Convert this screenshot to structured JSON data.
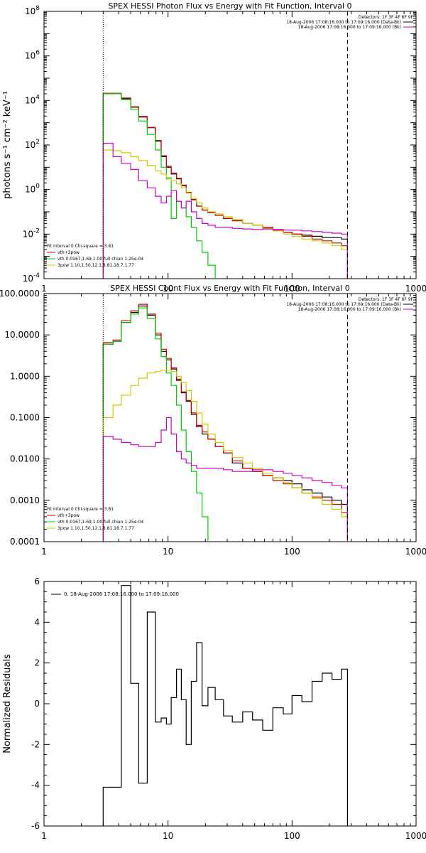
{
  "chart_data": [
    {
      "type": "line",
      "title": "SPEX HESSI Photon Flux vs Energy with Fit Function, Interval 0",
      "ylabel": "photons s⁻¹ cm⁻² keV⁻¹",
      "xscale": "log",
      "yscale": "log",
      "xlim": [
        1,
        1000
      ],
      "ylim": [
        0.0001,
        100000000
      ],
      "x_ticks": [
        1,
        10,
        100,
        1000
      ],
      "x_tick_labels": [
        "1",
        "10",
        "100",
        "1000"
      ],
      "y_ticks": [
        0.0001,
        0.01,
        1,
        100,
        10000,
        1000000,
        100000000
      ],
      "y_tick_labels": [
        {
          "base": "10",
          "exp": "-4"
        },
        {
          "base": "10",
          "exp": "-2"
        },
        {
          "base": "10",
          "exp": "0"
        },
        {
          "base": "10",
          "exp": "2"
        },
        {
          "base": "10",
          "exp": "4"
        },
        {
          "base": "10",
          "exp": "6"
        },
        {
          "base": "10",
          "exp": "8"
        }
      ],
      "vlines": [
        {
          "x": 3,
          "style": "dotted",
          "color": "#000000"
        },
        {
          "x": 280,
          "style": "dashed",
          "color": "#000000"
        }
      ],
      "legend_topright": [
        {
          "text": "Detectors: 1F 3F 4F 6F 9F",
          "color": "#000000",
          "swatch": false
        },
        {
          "text": "18-Aug-2006 17:08:16.000 to 17:09:16.000 (Data-Bk)",
          "color": "#000000",
          "swatch": true
        },
        {
          "text": "18-Aug-2006 17:08:16.000 to 17:09:16.000 (Bk)",
          "color": "#cc00cc",
          "swatch": true
        }
      ],
      "legend_bottomleft": [
        {
          "text": "Fit Interval 0   Chi-square = 3.81",
          "color": "#000000",
          "swatch": false
        },
        {
          "text": "vth+3pow",
          "color": "#cc0000",
          "swatch": true
        },
        {
          "text": "vth 0.0167,1.69,1.00  full chian 1.25e-04",
          "color": "#00cc00",
          "swatch": true
        },
        {
          "text": "3pow 1.10,1.50,12.1,8.81,18.7,1.77",
          "color": "#cccc00",
          "swatch": true
        }
      ],
      "series": [
        {
          "color": "#000000",
          "x": [
            3,
            3.6,
            4.2,
            5,
            5.8,
            6.8,
            7.9,
            8.8,
            9.7,
            10.6,
            11.7,
            12.8,
            14,
            15.4,
            17,
            18.8,
            21,
            24,
            28,
            33,
            40,
            48,
            58,
            70,
            85,
            100,
            120,
            145,
            175,
            210,
            250,
            280
          ],
          "y": [
            20000,
            20000,
            12000,
            5000,
            1800,
            600,
            150,
            30,
            10,
            5,
            3,
            1.5,
            0.7,
            0.35,
            0.18,
            0.12,
            0.09,
            0.07,
            0.05,
            0.04,
            0.03,
            0.025,
            0.02,
            0.015,
            0.012,
            0.01,
            0.009,
            0.008,
            0.007,
            0.007,
            0.006,
            0.006
          ]
        },
        {
          "color": "#cc0000",
          "x": [
            3,
            3.6,
            4.2,
            5,
            5.8,
            6.8,
            7.9,
            8.8,
            9.7,
            10.6,
            11.7,
            12.8,
            14,
            15.4,
            17,
            18.8,
            21,
            24,
            28,
            33,
            40,
            48,
            58,
            70,
            85,
            100,
            120,
            145,
            175,
            210,
            250,
            280
          ],
          "y": [
            21000,
            21000,
            13000,
            5200,
            1900,
            620,
            160,
            33,
            11,
            5.5,
            3.2,
            1.6,
            0.75,
            0.36,
            0.18,
            0.12,
            0.09,
            0.07,
            0.05,
            0.04,
            0.03,
            0.025,
            0.02,
            0.015,
            0.012,
            0.01,
            0.008,
            0.006,
            0.005,
            0.004,
            0.003,
            0.002
          ]
        },
        {
          "color": "#00cc00",
          "x": [
            3,
            3.6,
            4.2,
            5,
            5.8,
            6.8,
            7.9,
            8.8,
            9.7,
            10.6,
            11.7,
            12.8,
            14,
            15.4,
            17,
            18.8,
            21,
            24
          ],
          "y": [
            20000,
            20000,
            11000,
            4000,
            1200,
            300,
            60,
            10,
            3,
            0.05,
            0.3,
            0.15,
            0.06,
            0.02,
            0.005,
            0.0015,
            0.0004,
            0.0001
          ]
        },
        {
          "color": "#cccc00",
          "x": [
            3,
            3.6,
            4.2,
            5,
            5.8,
            6.8,
            7.9,
            8.8,
            9.7,
            10.6,
            11.7,
            12.8,
            14,
            15.4,
            17,
            18.8,
            21,
            24,
            28,
            33,
            40,
            48,
            58,
            70,
            85,
            100,
            120,
            145,
            175,
            210,
            250,
            280
          ],
          "y": [
            60,
            55,
            45,
            30,
            20,
            12,
            7,
            5,
            3.5,
            2.5,
            1.8,
            1.2,
            0.7,
            0.4,
            0.25,
            0.15,
            0.1,
            0.08,
            0.06,
            0.045,
            0.03,
            0.025,
            0.018,
            0.014,
            0.01,
            0.008,
            0.006,
            0.005,
            0.004,
            0.003,
            0.002,
            0.001
          ]
        },
        {
          "color": "#cc00cc",
          "x": [
            3,
            3.6,
            4.2,
            5,
            5.8,
            6.8,
            7.9,
            8.8,
            9.7,
            10.6,
            11.7,
            12.8,
            14,
            15.4,
            17,
            18.8,
            21,
            24,
            28,
            33,
            40,
            48,
            58,
            70,
            85,
            100,
            120,
            145,
            175,
            210,
            250,
            280
          ],
          "y": [
            120,
            30,
            15,
            8,
            2.5,
            1.2,
            0.5,
            0.25,
            0.5,
            0.9,
            0.3,
            0.15,
            0.3,
            0.1,
            0.05,
            0.03,
            0.025,
            0.02,
            0.02,
            0.018,
            0.017,
            0.016,
            0.017,
            0.016,
            0.015,
            0.015,
            0.014,
            0.013,
            0.012,
            0.011,
            0.01,
            0.009
          ]
        }
      ]
    },
    {
      "type": "line",
      "title": "SPEX HESSI Count Flux vs Energy with Fit Function, Interval 0",
      "ylabel": "",
      "xscale": "log",
      "yscale": "log",
      "xlim": [
        1,
        1000
      ],
      "ylim": [
        0.0001,
        100
      ],
      "x_ticks": [
        1,
        10,
        100,
        1000
      ],
      "x_tick_labels": [
        "1",
        "10",
        "100",
        "1000"
      ],
      "y_ticks": [
        0.0001,
        0.001,
        0.01,
        0.1,
        1,
        10,
        100
      ],
      "y_tick_labels": [
        {
          "base": "0.0001",
          "exp": ""
        },
        {
          "base": "0.0010",
          "exp": ""
        },
        {
          "base": "0.0100",
          "exp": ""
        },
        {
          "base": "0.1000",
          "exp": ""
        },
        {
          "base": "1.0000",
          "exp": ""
        },
        {
          "base": "10.0000",
          "exp": ""
        },
        {
          "base": "100.0000",
          "exp": ""
        }
      ],
      "vlines": [
        {
          "x": 3,
          "style": "dotted",
          "color": "#000000"
        },
        {
          "x": 280,
          "style": "dashed",
          "color": "#000000"
        }
      ],
      "legend_topright": [
        {
          "text": "Detectors: 1F 3F 4F 6F 9F",
          "color": "#000000",
          "swatch": false
        },
        {
          "text": "18-Aug-2006 17:08:16.000 to 17:09:16.000 (Data-Bk)",
          "color": "#000000",
          "swatch": true
        },
        {
          "text": "18-Aug-2006 17:08:16.000 to 17:09:16.000 (Bk)",
          "color": "#cc00cc",
          "swatch": true
        }
      ],
      "legend_bottomleft": [
        {
          "text": "Fit Interval 0   Chi-square = 3.81",
          "color": "#000000",
          "swatch": false
        },
        {
          "text": "vth+3pow",
          "color": "#cc0000",
          "swatch": true
        },
        {
          "text": "vth 0.0167,1.69,1.00  full chian 1.25e-04",
          "color": "#00cc00",
          "swatch": true
        },
        {
          "text": "3pow 1.10,1.50,12.1,8.81,18.7,1.77",
          "color": "#cccc00",
          "swatch": true
        }
      ],
      "series": [
        {
          "color": "#000000",
          "x": [
            3,
            3.6,
            4.2,
            5,
            5.8,
            6.8,
            7.9,
            8.8,
            9.7,
            10.6,
            11.7,
            12.8,
            14,
            15.4,
            17,
            18.8,
            21,
            24,
            28,
            33,
            40,
            48,
            58,
            70,
            85,
            100,
            120,
            145,
            175,
            210,
            250,
            280
          ],
          "y": [
            6,
            7,
            20,
            35,
            50,
            30,
            10,
            4,
            2.5,
            1.5,
            0.8,
            0.4,
            0.25,
            0.12,
            0.06,
            0.04,
            0.03,
            0.02,
            0.014,
            0.008,
            0.006,
            0.005,
            0.004,
            0.0035,
            0.003,
            0.0025,
            0.0018,
            0.0015,
            0.0012,
            0.001,
            0.0008,
            0.0008
          ]
        },
        {
          "color": "#cc0000",
          "x": [
            3,
            3.6,
            4.2,
            5,
            5.8,
            6.8,
            7.9,
            8.8,
            9.7,
            10.6,
            11.7,
            12.8,
            14,
            15.4,
            17,
            18.8,
            21,
            24,
            28,
            33,
            40,
            48,
            58,
            70,
            85,
            100,
            120,
            145,
            175,
            210,
            250,
            280
          ],
          "y": [
            6.5,
            7.5,
            22,
            38,
            55,
            32,
            11,
            4.5,
            2.7,
            1.6,
            0.85,
            0.42,
            0.26,
            0.13,
            0.065,
            0.045,
            0.03,
            0.02,
            0.014,
            0.009,
            0.006,
            0.005,
            0.004,
            0.003,
            0.0025,
            0.002,
            0.0015,
            0.0012,
            0.001,
            0.0008,
            0.0005,
            0.0005
          ]
        },
        {
          "color": "#00cc00",
          "x": [
            3,
            3.6,
            4.2,
            5,
            5.8,
            6.8,
            7.9,
            8.8,
            9.7,
            10.6,
            11.7,
            12.8,
            14,
            15.4,
            17,
            18.8,
            21
          ],
          "y": [
            6,
            7,
            20,
            32,
            45,
            25,
            8,
            3,
            1.2,
            0.6,
            0.2,
            0.05,
            0.015,
            0.005,
            0.0015,
            0.0004,
            0.0001
          ]
        },
        {
          "color": "#cccc00",
          "x": [
            3,
            3.6,
            4.2,
            5,
            5.8,
            6.8,
            7.9,
            8.8,
            9.7,
            10.6,
            11.7,
            12.8,
            14,
            15.4,
            17,
            18.8,
            21,
            24,
            28,
            33,
            40,
            48,
            58,
            70,
            85,
            100,
            120,
            145,
            175,
            210,
            250,
            280
          ],
          "y": [
            0.1,
            0.2,
            0.35,
            0.6,
            0.9,
            1.2,
            1.3,
            1.4,
            1.4,
            1.3,
            1.0,
            0.7,
            0.45,
            0.25,
            0.13,
            0.07,
            0.04,
            0.025,
            0.016,
            0.011,
            0.008,
            0.006,
            0.0045,
            0.0035,
            0.0027,
            0.002,
            0.0015,
            0.0011,
            0.0008,
            0.0006,
            0.0004,
            0.0002
          ]
        },
        {
          "color": "#cc00cc",
          "x": [
            3,
            3.6,
            4.2,
            5,
            5.8,
            6.8,
            7.9,
            8.8,
            9.7,
            10.6,
            11.7,
            12.8,
            14,
            15.4,
            17,
            18.8,
            21,
            24,
            28,
            33,
            40,
            48,
            58,
            70,
            85,
            100,
            120,
            145,
            175,
            210,
            250,
            280
          ],
          "y": [
            0.035,
            0.03,
            0.025,
            0.022,
            0.02,
            0.02,
            0.025,
            0.05,
            0.1,
            0.04,
            0.015,
            0.01,
            0.008,
            0.007,
            0.006,
            0.006,
            0.006,
            0.006,
            0.0055,
            0.005,
            0.005,
            0.0055,
            0.0055,
            0.005,
            0.0045,
            0.004,
            0.0035,
            0.003,
            0.0027,
            0.0023,
            0.002,
            0.0015
          ]
        }
      ]
    },
    {
      "type": "line",
      "title": "",
      "ylabel": "Normalized Residuals",
      "xscale": "log",
      "yscale": "linear",
      "xlim": [
        1,
        1000
      ],
      "ylim": [
        -6,
        6
      ],
      "x_ticks": [
        1,
        10,
        100,
        1000
      ],
      "x_tick_labels": [
        "1",
        "10",
        "100",
        "1000"
      ],
      "y_ticks": [
        -6,
        -4,
        -2,
        0,
        2,
        4,
        6
      ],
      "y_tick_labels": [
        {
          "base": "-6",
          "exp": ""
        },
        {
          "base": "-4",
          "exp": ""
        },
        {
          "base": "-2",
          "exp": ""
        },
        {
          "base": "0",
          "exp": ""
        },
        {
          "base": "2",
          "exp": ""
        },
        {
          "base": "4",
          "exp": ""
        },
        {
          "base": "6",
          "exp": ""
        }
      ],
      "vlines": [],
      "legend_topright": [],
      "legend_bottomleft": [],
      "legend_topleft": [
        {
          "text": "0. 18-Aug-2006 17:08:16.000 to 17:09:16.000",
          "color": "#000000",
          "swatch": true
        }
      ],
      "series": [
        {
          "color": "#000000",
          "x": [
            3,
            4.2,
            5,
            5.8,
            6.8,
            7.9,
            8.8,
            9.7,
            10.6,
            11.7,
            12.8,
            14,
            15.4,
            17,
            18.8,
            21,
            24,
            28,
            33,
            40,
            48,
            58,
            70,
            85,
            100,
            120,
            145,
            175,
            210,
            250,
            280
          ],
          "y": [
            -4.1,
            5.8,
            1.0,
            -3.9,
            4.5,
            -0.9,
            -0.7,
            -1.0,
            0.3,
            1.7,
            0.2,
            -2.0,
            1.1,
            3.0,
            -0.1,
            0.8,
            0.2,
            -0.6,
            -0.9,
            -0.4,
            -0.8,
            -1.3,
            -0.2,
            -0.5,
            0.4,
            0.1,
            1.1,
            1.5,
            1.2,
            1.7,
            1.5
          ]
        }
      ]
    }
  ]
}
